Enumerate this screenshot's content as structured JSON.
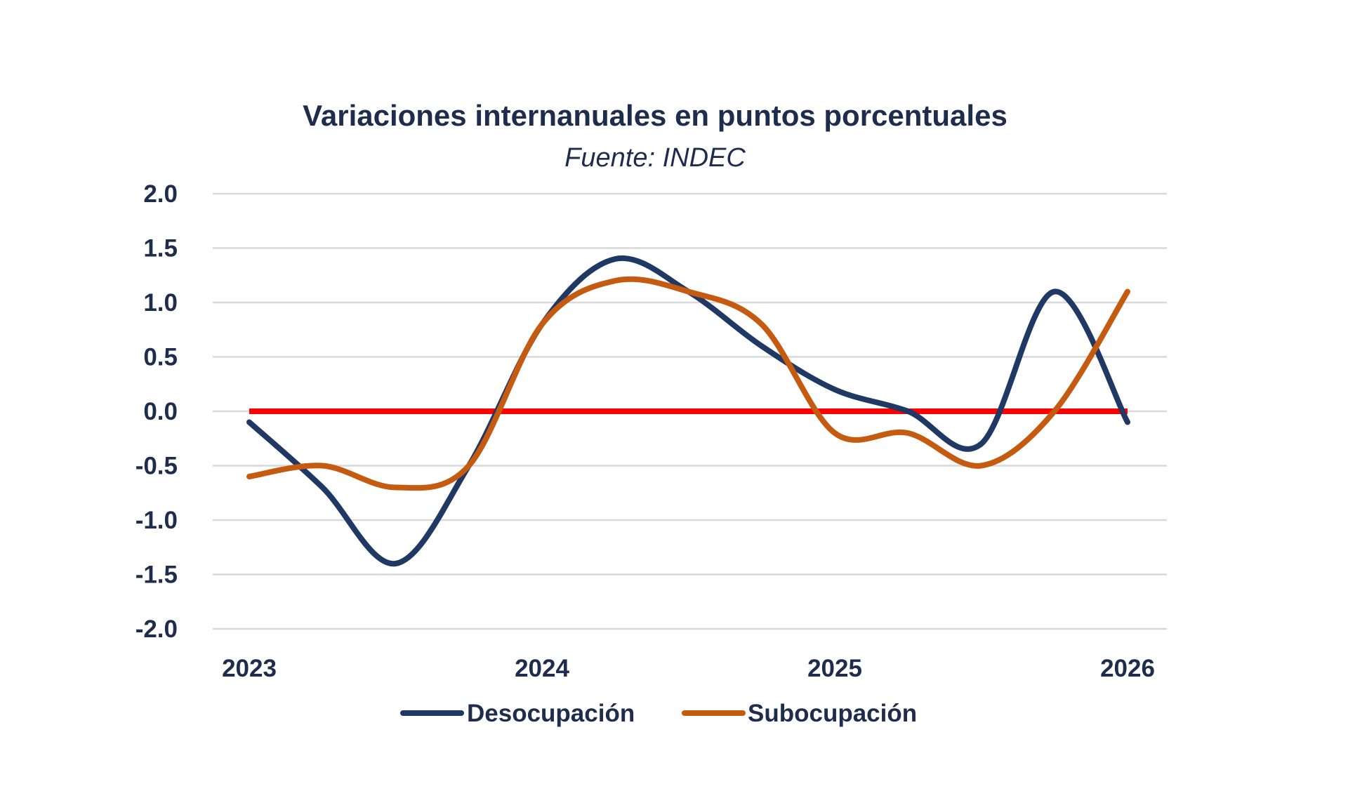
{
  "chart_data": {
    "type": "line",
    "title": "Variaciones internanuales en puntos porcentuales",
    "subtitle": "Fuente: INDEC",
    "xlabel": "",
    "ylabel": "",
    "x": [
      2023.0,
      2023.25,
      2023.5,
      2023.75,
      2024.0,
      2024.25,
      2024.5,
      2024.75,
      2025.0,
      2025.25,
      2025.5,
      2025.75,
      2026.0
    ],
    "x_ticks": [
      "2023",
      "2024",
      "2025",
      "2026"
    ],
    "x_tick_values": [
      2023,
      2024,
      2025,
      2026
    ],
    "xlim": [
      2023,
      2026
    ],
    "y_ticks": [
      "2.0",
      "1.5",
      "1.0",
      "0.5",
      "0.0",
      "-0.5",
      "-1.0",
      "-1.5",
      "-2.0"
    ],
    "y_tick_values": [
      2.0,
      1.5,
      1.0,
      0.5,
      0.0,
      -0.5,
      -1.0,
      -1.5,
      -2.0
    ],
    "ylim": [
      -2.0,
      2.0
    ],
    "grid": true,
    "legend_position": "bottom",
    "series": [
      {
        "name": "Desocupación",
        "color": "#1f3864",
        "values": [
          -0.1,
          -0.7,
          -1.4,
          -0.5,
          0.8,
          1.4,
          1.1,
          0.6,
          0.2,
          0.0,
          -0.3,
          1.1,
          -0.1
        ]
      },
      {
        "name": "Subocupación",
        "color": "#c55a11",
        "values": [
          -0.6,
          -0.5,
          -0.7,
          -0.5,
          0.8,
          1.2,
          1.1,
          0.8,
          -0.2,
          -0.2,
          -0.5,
          0.0,
          1.1
        ]
      }
    ],
    "reference_line": {
      "y": 0.0,
      "color": "#ff0000"
    },
    "colors": {
      "text": "#1f2d4d",
      "grid": "#d9d9d9"
    }
  }
}
